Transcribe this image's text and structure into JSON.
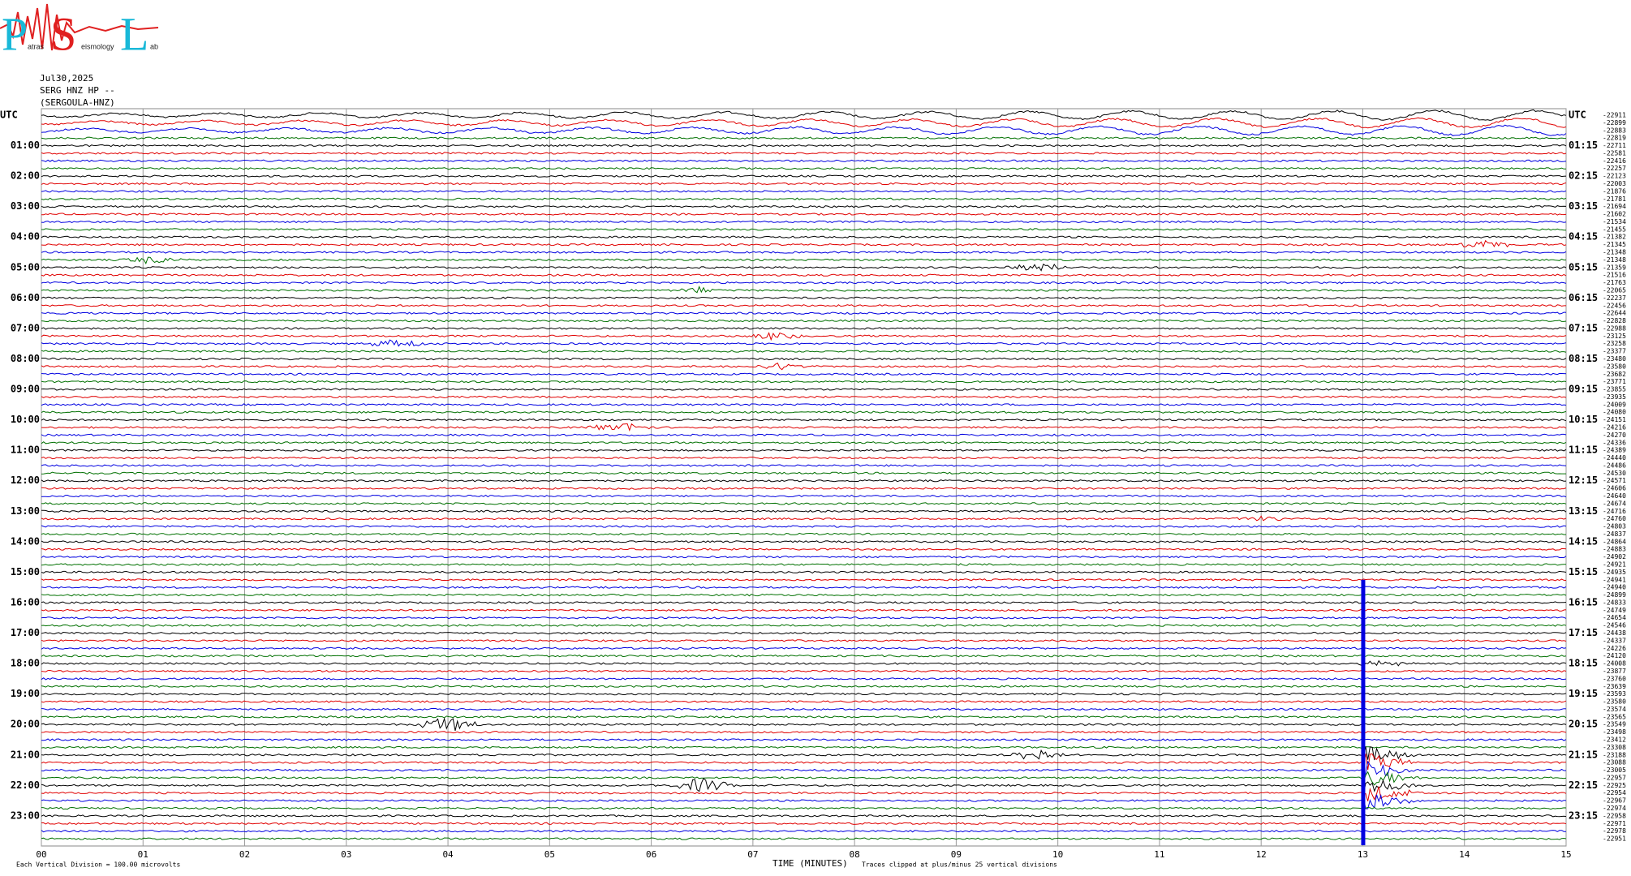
{
  "logo": {
    "letters": [
      "P",
      "S",
      "L"
    ],
    "words": [
      "atras",
      "eismology",
      "ab"
    ]
  },
  "chart_data": {
    "type": "helicorder",
    "header": [
      "Jul30,2025",
      "SERG HNZ HP --",
      "(SERGOULA-HNZ)"
    ],
    "left_labels": [
      "UTC",
      "01:00",
      "02:00",
      "03:00",
      "04:00",
      "05:00",
      "06:00",
      "07:00",
      "08:00",
      "09:00",
      "10:00",
      "11:00",
      "12:00",
      "13:00",
      "14:00",
      "15:00",
      "16:00",
      "17:00",
      "18:00",
      "19:00",
      "20:00",
      "21:00",
      "22:00",
      "23:00"
    ],
    "right_labels": [
      "UTC",
      "01:15",
      "02:15",
      "03:15",
      "04:15",
      "05:15",
      "06:15",
      "07:15",
      "08:15",
      "09:15",
      "10:15",
      "11:15",
      "12:15",
      "13:15",
      "14:15",
      "15:15",
      "16:15",
      "17:15",
      "18:15",
      "19:15",
      "20:15",
      "21:15",
      "22:15",
      "23:15"
    ],
    "offsets": [
      -22911,
      -22899,
      -22883,
      -22819,
      -22711,
      -22581,
      -22416,
      -22257,
      -22123,
      -22003,
      -21876,
      -21781,
      -21694,
      -21602,
      -21534,
      -21455,
      -21382,
      -21345,
      -21348,
      -21348,
      -21359,
      -21516,
      -21763,
      -22065,
      -22237,
      -22456,
      -22644,
      -22828,
      -22988,
      -23125,
      -23258,
      -23377,
      -23480,
      -23580,
      -23682,
      -23771,
      -23855,
      -23935,
      -24009,
      -24080,
      -24151,
      -24216,
      -24270,
      -24336,
      -24389,
      -24440,
      -24486,
      -24530,
      -24571,
      -24606,
      -24640,
      -24674,
      -24716,
      -24760,
      -24803,
      -24837,
      -24864,
      -24883,
      -24902,
      -24921,
      -24935,
      -24941,
      -24940,
      -24899,
      -24833,
      -24749,
      -24654,
      -24546,
      -24438,
      -24337,
      -24226,
      -24120,
      -24008,
      -23877,
      -23760,
      -23639,
      -23593,
      -23580,
      -23574,
      -23565,
      -23549,
      -23498,
      -23412,
      -23308,
      -23188,
      -23088,
      -23005,
      -22957,
      -22925,
      -22954,
      -22967,
      -22974,
      -22958,
      -22971,
      -22978,
      -22951
    ],
    "colors": [
      "#000000",
      "#e00000",
      "#0000e0",
      "#007000"
    ],
    "xlim": [
      0,
      15
    ],
    "xticks": [
      {
        "value": 0,
        "label": "00"
      },
      {
        "value": 1,
        "label": "01"
      },
      {
        "value": 2,
        "label": "02"
      },
      {
        "value": 3,
        "label": "03"
      },
      {
        "value": 4,
        "label": "04"
      },
      {
        "value": 5,
        "label": "05"
      },
      {
        "value": 6,
        "label": "06"
      },
      {
        "value": 7,
        "label": "07"
      },
      {
        "value": 8,
        "label": "08"
      },
      {
        "value": 9,
        "label": "09"
      },
      {
        "value": 10,
        "label": "10"
      },
      {
        "value": 11,
        "label": "11"
      },
      {
        "value": 12,
        "label": "12"
      },
      {
        "value": 13,
        "label": "13"
      },
      {
        "value": 14,
        "label": "14"
      },
      {
        "value": 15,
        "label": "15"
      }
    ],
    "xlabel": "TIME (MINUTES)",
    "scale_note": "Each Vertical Division =  100.00 microvolts",
    "clip_note": "Traces clipped at plus/minus 25 vertical divisions"
  }
}
